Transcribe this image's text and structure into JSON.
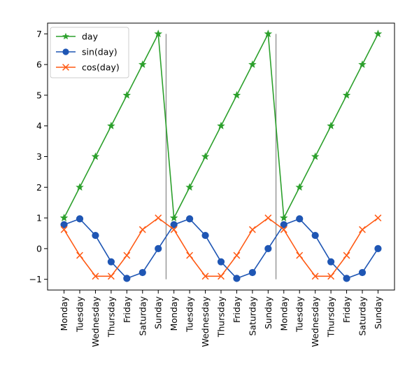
{
  "chart_data": {
    "type": "line",
    "title": "",
    "xlabel": "",
    "ylabel": "",
    "categories": [
      "Monday",
      "Tuesday",
      "Wednesday",
      "Thursday",
      "Friday",
      "Saturday",
      "Sunday",
      "Monday",
      "Tuesday",
      "Wednesday",
      "Thursday",
      "Friday",
      "Saturday",
      "Sunday",
      "Monday",
      "Tuesday",
      "Wednesday",
      "Thursday",
      "Friday",
      "Saturday",
      "Sunday"
    ],
    "ylim": [
      -1.35,
      7.35
    ],
    "yticks": [
      -1,
      0,
      1,
      2,
      3,
      4,
      5,
      6,
      7
    ],
    "grid": false,
    "legend_position": "top-left",
    "vlines": {
      "after_category_index": [
        6,
        13
      ],
      "ymin": -1,
      "ymax": 7,
      "color": "#8c8c8c"
    },
    "series": [
      {
        "name": "day",
        "marker": "star",
        "color": "#2ca02c",
        "values": [
          1,
          2,
          3,
          4,
          5,
          6,
          7,
          1,
          2,
          3,
          4,
          5,
          6,
          7,
          1,
          2,
          3,
          4,
          5,
          6,
          7
        ]
      },
      {
        "name": "sin(day)",
        "marker": "circle",
        "color": "#1f56b4",
        "values": [
          0.78,
          0.97,
          0.43,
          -0.43,
          -0.97,
          -0.78,
          0.0,
          0.78,
          0.97,
          0.43,
          -0.43,
          -0.97,
          -0.78,
          0.0,
          0.78,
          0.97,
          0.43,
          -0.43,
          -0.97,
          -0.78,
          0.0
        ]
      },
      {
        "name": "cos(day)",
        "marker": "x",
        "color": "#ff5a14",
        "values": [
          0.62,
          -0.22,
          -0.9,
          -0.9,
          -0.22,
          0.62,
          1.0,
          0.62,
          -0.22,
          -0.9,
          -0.9,
          -0.22,
          0.62,
          1.0,
          0.62,
          -0.22,
          -0.9,
          -0.9,
          -0.22,
          0.62,
          1.0
        ]
      }
    ]
  }
}
